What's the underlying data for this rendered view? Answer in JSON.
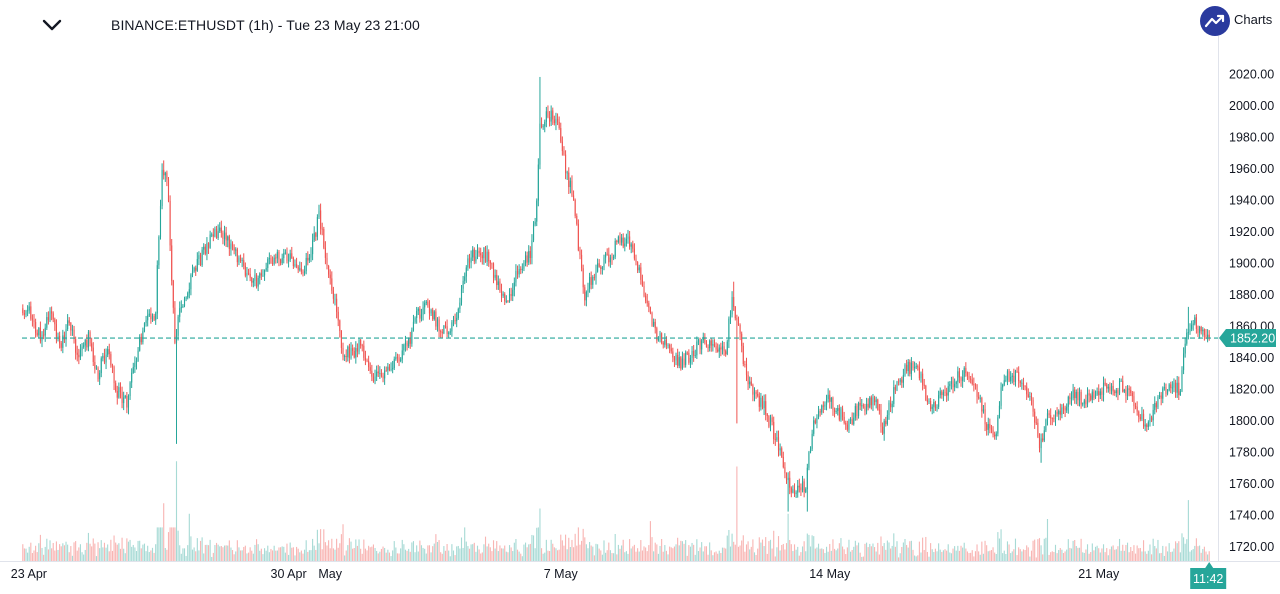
{
  "header": {
    "title": "BINANCE:ETHUSDT (1h) - Tue 23 May 23 21:00",
    "brand_text": "Charts",
    "collapse_icon": "chevron-down-icon",
    "brand_icon": "trend-arrow-icon"
  },
  "colors": {
    "up": "#26a69a",
    "down": "#ef5350",
    "up_volume": "#a7dad5",
    "down_volume": "#f8b5b3",
    "price_line": "#26a69a",
    "axis_text": "#131722",
    "brand": "#2a3a9e"
  },
  "chart_data": {
    "type": "candlestick",
    "symbol": "BINANCE:ETHUSDT",
    "interval": "1h",
    "ylim": [
      1710,
      2040
    ],
    "y_ticks": [
      2020,
      2000,
      1980,
      1960,
      1940,
      1920,
      1900,
      1880,
      1860,
      1840,
      1820,
      1800,
      1780,
      1760,
      1740,
      1720
    ],
    "y_tick_labels": [
      "2020.00",
      "2000.00",
      "1980.00",
      "1960.00",
      "1940.00",
      "1920.00",
      "1900.00",
      "1880.00",
      "1860.00",
      "1840.00",
      "1820.00",
      "1800.00",
      "1780.00",
      "1760.00",
      "1740.00",
      "1720.00"
    ],
    "x_ticks": [
      {
        "label": "23 Apr",
        "bar": 0
      },
      {
        "label": "30 Apr",
        "bar": 166
      },
      {
        "label": "May",
        "bar": 192
      },
      {
        "label": "7 May",
        "bar": 336
      },
      {
        "label": "14 May",
        "bar": 504
      },
      {
        "label": "21 May",
        "bar": 672
      }
    ],
    "bar_count": 742,
    "last_price": 1852.2,
    "last_price_label": "1852.20",
    "countdown_label": "11:42",
    "price_anchors": [
      [
        0,
        1872
      ],
      [
        6,
        1868
      ],
      [
        12,
        1852
      ],
      [
        18,
        1870
      ],
      [
        24,
        1848
      ],
      [
        30,
        1862
      ],
      [
        36,
        1838
      ],
      [
        42,
        1852
      ],
      [
        48,
        1830
      ],
      [
        54,
        1845
      ],
      [
        60,
        1818
      ],
      [
        66,
        1810
      ],
      [
        72,
        1842
      ],
      [
        78,
        1864
      ],
      [
        84,
        1868
      ],
      [
        86,
        1920
      ],
      [
        88,
        1955
      ],
      [
        90,
        1960
      ],
      [
        92,
        1940
      ],
      [
        94,
        1890
      ],
      [
        96,
        1845
      ],
      [
        98,
        1868
      ],
      [
        104,
        1885
      ],
      [
        110,
        1898
      ],
      [
        116,
        1912
      ],
      [
        122,
        1920
      ],
      [
        128,
        1915
      ],
      [
        134,
        1905
      ],
      [
        140,
        1895
      ],
      [
        146,
        1888
      ],
      [
        152,
        1896
      ],
      [
        158,
        1902
      ],
      [
        164,
        1905
      ],
      [
        170,
        1900
      ],
      [
        176,
        1896
      ],
      [
        182,
        1910
      ],
      [
        186,
        1930
      ],
      [
        190,
        1905
      ],
      [
        196,
        1875
      ],
      [
        200,
        1845
      ],
      [
        206,
        1842
      ],
      [
        212,
        1848
      ],
      [
        218,
        1830
      ],
      [
        224,
        1826
      ],
      [
        230,
        1832
      ],
      [
        236,
        1840
      ],
      [
        242,
        1850
      ],
      [
        248,
        1868
      ],
      [
        254,
        1872
      ],
      [
        260,
        1862
      ],
      [
        266,
        1856
      ],
      [
        272,
        1868
      ],
      [
        276,
        1890
      ],
      [
        280,
        1902
      ],
      [
        286,
        1908
      ],
      [
        292,
        1902
      ],
      [
        298,
        1885
      ],
      [
        304,
        1872
      ],
      [
        308,
        1892
      ],
      [
        314,
        1902
      ],
      [
        318,
        1905
      ],
      [
        322,
        1935
      ],
      [
        324,
        1985
      ],
      [
        328,
        1992
      ],
      [
        332,
        1994
      ],
      [
        336,
        1985
      ],
      [
        340,
        1958
      ],
      [
        344,
        1945
      ],
      [
        348,
        1912
      ],
      [
        352,
        1878
      ],
      [
        356,
        1890
      ],
      [
        362,
        1898
      ],
      [
        368,
        1905
      ],
      [
        374,
        1915
      ],
      [
        380,
        1912
      ],
      [
        386,
        1896
      ],
      [
        392,
        1868
      ],
      [
        398,
        1852
      ],
      [
        404,
        1848
      ],
      [
        410,
        1835
      ],
      [
        416,
        1840
      ],
      [
        422,
        1846
      ],
      [
        428,
        1850
      ],
      [
        434,
        1845
      ],
      [
        440,
        1846
      ],
      [
        444,
        1875
      ],
      [
        448,
        1862
      ],
      [
        452,
        1832
      ],
      [
        458,
        1818
      ],
      [
        464,
        1808
      ],
      [
        470,
        1792
      ],
      [
        474,
        1780
      ],
      [
        478,
        1765
      ],
      [
        482,
        1752
      ],
      [
        486,
        1760
      ],
      [
        490,
        1758
      ],
      [
        494,
        1795
      ],
      [
        498,
        1808
      ],
      [
        504,
        1812
      ],
      [
        510,
        1806
      ],
      [
        516,
        1798
      ],
      [
        522,
        1806
      ],
      [
        528,
        1810
      ],
      [
        534,
        1816
      ],
      [
        538,
        1795
      ],
      [
        542,
        1808
      ],
      [
        546,
        1820
      ],
      [
        552,
        1832
      ],
      [
        558,
        1835
      ],
      [
        562,
        1828
      ],
      [
        566,
        1808
      ],
      [
        572,
        1812
      ],
      [
        578,
        1818
      ],
      [
        584,
        1826
      ],
      [
        590,
        1830
      ],
      [
        596,
        1820
      ],
      [
        602,
        1800
      ],
      [
        608,
        1788
      ],
      [
        612,
        1820
      ],
      [
        618,
        1830
      ],
      [
        624,
        1826
      ],
      [
        630,
        1812
      ],
      [
        634,
        1800
      ],
      [
        636,
        1782
      ],
      [
        640,
        1800
      ],
      [
        646,
        1806
      ],
      [
        652,
        1810
      ],
      [
        658,
        1818
      ],
      [
        664,
        1812
      ],
      [
        670,
        1816
      ],
      [
        676,
        1820
      ],
      [
        682,
        1818
      ],
      [
        688,
        1822
      ],
      [
        694,
        1812
      ],
      [
        700,
        1800
      ],
      [
        704,
        1795
      ],
      [
        708,
        1808
      ],
      [
        714,
        1818
      ],
      [
        720,
        1822
      ],
      [
        724,
        1818
      ],
      [
        728,
        1858
      ],
      [
        732,
        1865
      ],
      [
        736,
        1855
      ],
      [
        742,
        1850
      ]
    ],
    "spikes": [
      [
        88,
        "high",
        1965
      ],
      [
        96,
        "low",
        1785
      ],
      [
        323,
        "high",
        2018
      ],
      [
        444,
        "high",
        1888
      ],
      [
        446,
        "low",
        1798
      ],
      [
        478,
        "low",
        1742
      ],
      [
        490,
        "low",
        1742
      ],
      [
        636,
        "low",
        1773
      ],
      [
        728,
        "high",
        1872
      ]
    ],
    "volume_spikes": [
      [
        96,
        0.95
      ],
      [
        88,
        0.55
      ],
      [
        104,
        0.45
      ],
      [
        323,
        0.5
      ],
      [
        446,
        0.9
      ],
      [
        478,
        0.45
      ],
      [
        640,
        0.4
      ],
      [
        728,
        0.58
      ],
      [
        392,
        0.38
      ],
      [
        200,
        0.35
      ],
      [
        276,
        0.32
      ]
    ]
  }
}
